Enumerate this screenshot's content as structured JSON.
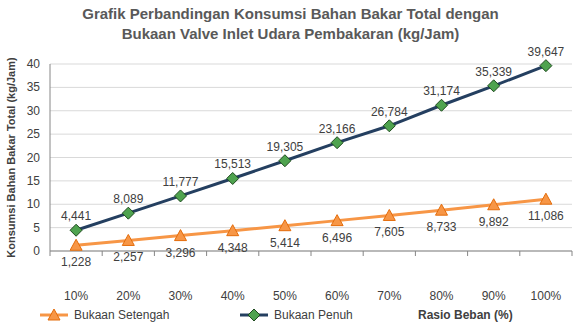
{
  "chart_data": {
    "type": "line",
    "title": [
      "Grafik Perbandingan Konsumsi Bahan Bakar Total dengan",
      "Bukaan Valve Inlet Udara Pembakaran (kg/Jam)"
    ],
    "y_label": "Konsumsi Bahan Bakar Total (kg/Jam)",
    "x_label": "Rasio Beban (%)",
    "categories": [
      "10%",
      "20%",
      "30%",
      "40%",
      "50%",
      "60%",
      "70%",
      "80%",
      "90%",
      "100%"
    ],
    "series": [
      {
        "name": "Bukaan Setengah",
        "color": "#F79646",
        "marker": "triangle",
        "values": [
          1.228,
          2.257,
          3.296,
          4.348,
          5.414,
          6.496,
          7.605,
          8.733,
          9.892,
          11.086
        ],
        "value_labels": [
          "1,228",
          "2,257",
          "3,296",
          "4,348",
          "5,414",
          "6,496",
          "7,605",
          "8,733",
          "9,892",
          "11,086"
        ]
      },
      {
        "name": "Bukaan Penuh",
        "color": "#243F60",
        "marker": "diamond",
        "values": [
          4.441,
          8.089,
          11.777,
          15.513,
          19.305,
          23.166,
          26.784,
          31.174,
          35.339,
          39.647
        ],
        "value_labels": [
          "4,441",
          "8,089",
          "11,777",
          "15,513",
          "19,305",
          "23,166",
          "26,784",
          "31,174",
          "35,339",
          "39,647"
        ]
      }
    ],
    "ylim": [
      0,
      40
    ],
    "yticks": [
      0,
      5,
      10,
      15,
      20,
      25,
      30,
      35,
      40
    ],
    "grid": true,
    "legend": "bottom",
    "data_labels": true
  }
}
